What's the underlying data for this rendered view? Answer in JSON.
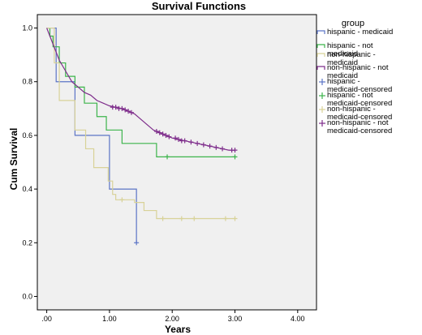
{
  "chart_data": {
    "type": "line",
    "title": "Survival Functions",
    "xlabel": "Years",
    "ylabel": "Cum Survival",
    "xlim": [
      -0.15,
      4.3
    ],
    "ylim": [
      -0.05,
      1.05
    ],
    "x_ticks": [
      0,
      1,
      2,
      3,
      4
    ],
    "x_tick_labels": [
      ".00",
      "1.00",
      "2.00",
      "3.00",
      "4.00"
    ],
    "y_ticks": [
      0,
      0.2,
      0.4,
      0.6,
      0.8,
      1.0
    ],
    "y_tick_labels": [
      "0.0",
      "0.2",
      "0.4",
      "0.6",
      "0.8",
      "1.0"
    ],
    "grid": false,
    "legend_title": "group",
    "legend_position": "right",
    "legend": [
      {
        "label": "hispanic - medicaid",
        "kind": "line",
        "series": 0
      },
      {
        "label": "hispanic - not medicaid",
        "kind": "line",
        "series": 1
      },
      {
        "label": "non-hispanic - medicaid",
        "kind": "line",
        "series": 2
      },
      {
        "label": "non-hispanic - not medicaid",
        "kind": "line",
        "series": 3
      },
      {
        "label": "hispanic - medicaid-censored",
        "kind": "censor",
        "series": 0
      },
      {
        "label": "hispanic - not medicaid-censored",
        "kind": "censor",
        "series": 1
      },
      {
        "label": "non-hispanic - medicaid-censored",
        "kind": "censor",
        "series": 2
      },
      {
        "label": "non-hispanic - not medicaid-censored",
        "kind": "censor",
        "series": 3
      }
    ],
    "series": [
      {
        "name": "hispanic - medicaid",
        "color": "#5b74c6",
        "x": [
          0,
          0.15,
          0.15,
          0.45,
          0.45,
          1.0,
          1.0,
          1.43
        ],
        "y": [
          1.0,
          1.0,
          0.8,
          0.8,
          0.6,
          0.6,
          0.4,
          0.4
        ],
        "final": [
          1.43,
          0.2
        ],
        "censored": [
          [
            1.43,
            0.2
          ]
        ]
      },
      {
        "name": "hispanic - not medicaid",
        "color": "#3cb44b",
        "x": [
          0,
          0.05,
          0.05,
          0.1,
          0.1,
          0.2,
          0.2,
          0.3,
          0.3,
          0.45,
          0.45,
          0.6,
          0.6,
          0.8,
          0.8,
          0.95,
          0.95,
          1.2,
          1.2,
          1.75,
          1.75,
          3.0
        ],
        "y": [
          1.0,
          1.0,
          0.97,
          0.97,
          0.93,
          0.93,
          0.87,
          0.87,
          0.82,
          0.82,
          0.78,
          0.78,
          0.72,
          0.72,
          0.67,
          0.67,
          0.62,
          0.62,
          0.57,
          0.57,
          0.52,
          0.52
        ],
        "censored": [
          [
            1.92,
            0.52
          ],
          [
            3.0,
            0.52
          ]
        ]
      },
      {
        "name": "non-hispanic - medicaid",
        "color": "#d8d298",
        "x": [
          0,
          0.12,
          0.12,
          0.2,
          0.2,
          0.45,
          0.45,
          0.62,
          0.62,
          0.75,
          0.75,
          0.98,
          0.98,
          1.05,
          1.05,
          1.1,
          1.1,
          1.4,
          1.4,
          1.55,
          1.55,
          1.75,
          1.75,
          3.0
        ],
        "y": [
          1.0,
          1.0,
          0.87,
          0.87,
          0.73,
          0.73,
          0.62,
          0.62,
          0.55,
          0.55,
          0.48,
          0.48,
          0.43,
          0.43,
          0.38,
          0.38,
          0.36,
          0.36,
          0.35,
          0.35,
          0.32,
          0.32,
          0.29,
          0.29
        ],
        "censored": [
          [
            1.2,
            0.36
          ],
          [
            1.85,
            0.29
          ],
          [
            2.15,
            0.29
          ],
          [
            2.35,
            0.29
          ],
          [
            2.85,
            0.29
          ],
          [
            3.0,
            0.29
          ]
        ]
      },
      {
        "name": "non-hispanic - not medicaid",
        "color": "#7e2d8b",
        "x": [
          0,
          0.05,
          0.1,
          0.2,
          0.3,
          0.4,
          0.5,
          0.6,
          0.7,
          0.8,
          0.9,
          1.0,
          1.1,
          1.2,
          1.3,
          1.4,
          1.5,
          1.6,
          1.7,
          1.8,
          1.9,
          2.0,
          2.1,
          2.2,
          2.3,
          2.4,
          2.5,
          2.6,
          2.7,
          2.8,
          2.9,
          3.0
        ],
        "y": [
          1.0,
          0.97,
          0.94,
          0.88,
          0.84,
          0.8,
          0.78,
          0.76,
          0.75,
          0.73,
          0.72,
          0.71,
          0.705,
          0.7,
          0.69,
          0.68,
          0.66,
          0.64,
          0.62,
          0.61,
          0.6,
          0.59,
          0.585,
          0.58,
          0.575,
          0.57,
          0.565,
          0.56,
          0.555,
          0.55,
          0.545,
          0.545
        ],
        "censored": [
          [
            1.05,
            0.705
          ],
          [
            1.1,
            0.705
          ],
          [
            1.15,
            0.7
          ],
          [
            1.2,
            0.7
          ],
          [
            1.25,
            0.695
          ],
          [
            1.3,
            0.69
          ],
          [
            1.35,
            0.685
          ],
          [
            1.75,
            0.615
          ],
          [
            1.8,
            0.61
          ],
          [
            1.85,
            0.605
          ],
          [
            1.9,
            0.6
          ],
          [
            1.95,
            0.595
          ],
          [
            2.05,
            0.59
          ],
          [
            2.1,
            0.585
          ],
          [
            2.15,
            0.58
          ],
          [
            2.2,
            0.58
          ],
          [
            2.3,
            0.575
          ],
          [
            2.4,
            0.57
          ],
          [
            2.5,
            0.565
          ],
          [
            2.6,
            0.56
          ],
          [
            2.7,
            0.555
          ],
          [
            2.8,
            0.55
          ],
          [
            2.95,
            0.545
          ],
          [
            3.0,
            0.545
          ]
        ]
      }
    ]
  }
}
